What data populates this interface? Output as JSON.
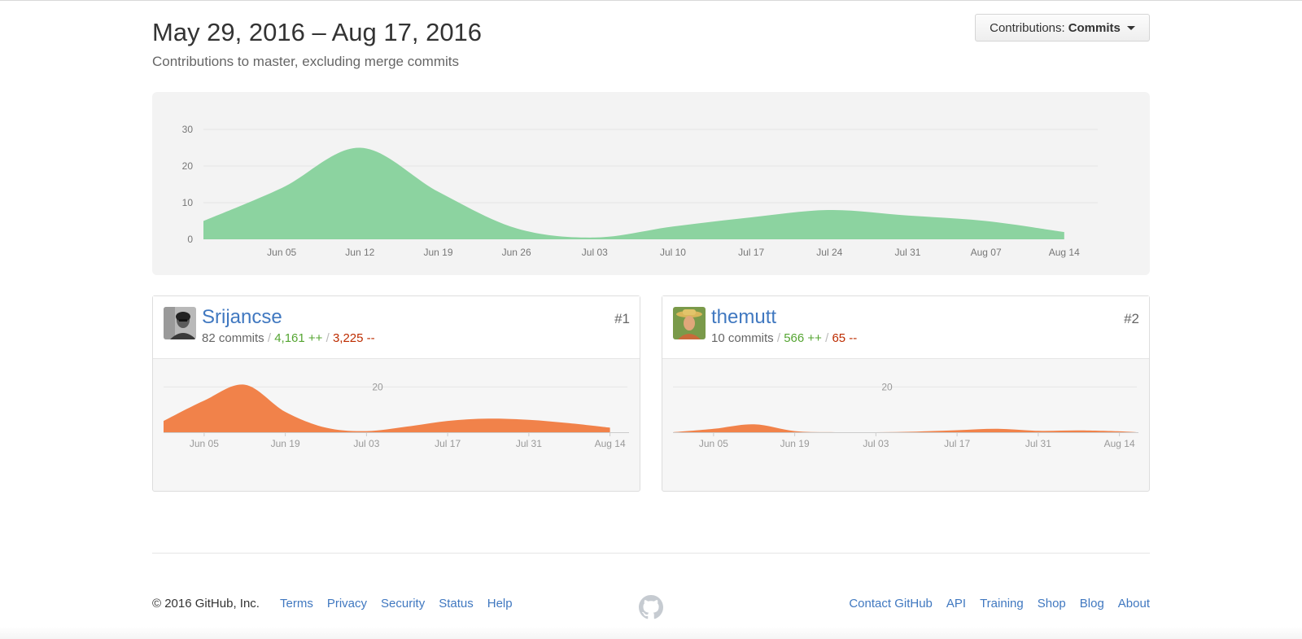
{
  "header": {
    "date_range": "May 29, 2016 – Aug 17, 2016",
    "subtitle": "Contributions to master, excluding merge commits",
    "contrib_label": "Contributions:",
    "contrib_value": "Commits"
  },
  "colors": {
    "main_area": "#8cd3a0",
    "user_area": "#f1824a",
    "link": "#4078c0",
    "additions": "#55a532",
    "deletions": "#bd2c00"
  },
  "chart_data": [
    {
      "type": "area",
      "yticks": [
        0,
        10,
        20,
        30
      ],
      "ylim": [
        0,
        32
      ],
      "xlim": [
        "2016-05-29",
        "2016-08-17"
      ],
      "x_tick_labels": [
        "Jun 05",
        "Jun 12",
        "Jun 19",
        "Jun 26",
        "Jul 03",
        "Jul 10",
        "Jul 17",
        "Jul 24",
        "Jul 31",
        "Aug 07",
        "Aug 14"
      ],
      "x_tick_dates": [
        "2016-06-05",
        "2016-06-12",
        "2016-06-19",
        "2016-06-26",
        "2016-07-03",
        "2016-07-10",
        "2016-07-17",
        "2016-07-24",
        "2016-07-31",
        "2016-08-07",
        "2016-08-14"
      ],
      "series": [
        {
          "x": [
            "2016-05-29",
            "2016-06-05",
            "2016-06-12",
            "2016-06-19",
            "2016-06-26",
            "2016-07-03",
            "2016-07-10",
            "2016-07-17",
            "2016-07-24",
            "2016-07-31",
            "2016-08-07",
            "2016-08-14"
          ],
          "values": [
            5,
            14,
            25,
            13,
            3,
            0.5,
            3.5,
            6,
            8,
            6.5,
            5,
            2
          ]
        }
      ]
    },
    {
      "type": "area",
      "yticks": [
        20
      ],
      "ylim": [
        0,
        32
      ],
      "xlim": [
        "2016-05-29",
        "2016-08-17"
      ],
      "x_tick_labels": [
        "Jun 05",
        "Jun 19",
        "Jul 03",
        "Jul 17",
        "Jul 31",
        "Aug 14"
      ],
      "x_tick_dates": [
        "2016-06-05",
        "2016-06-19",
        "2016-07-03",
        "2016-07-17",
        "2016-07-31",
        "2016-08-14"
      ],
      "series": [
        {
          "x": [
            "2016-05-29",
            "2016-06-05",
            "2016-06-12",
            "2016-06-19",
            "2016-06-26",
            "2016-07-03",
            "2016-07-10",
            "2016-07-17",
            "2016-07-24",
            "2016-07-31",
            "2016-08-07",
            "2016-08-14"
          ],
          "values": [
            5,
            14,
            21,
            9,
            2,
            0.5,
            2.5,
            5,
            6,
            5.5,
            4,
            2
          ]
        }
      ]
    },
    {
      "type": "area",
      "yticks": [
        20
      ],
      "ylim": [
        0,
        32
      ],
      "xlim": [
        "2016-05-29",
        "2016-08-17"
      ],
      "x_tick_labels": [
        "Jun 05",
        "Jun 19",
        "Jul 03",
        "Jul 17",
        "Jul 31",
        "Aug 14"
      ],
      "x_tick_dates": [
        "2016-06-05",
        "2016-06-19",
        "2016-07-03",
        "2016-07-17",
        "2016-07-31",
        "2016-08-14"
      ],
      "series": [
        {
          "x": [
            "2016-05-29",
            "2016-06-05",
            "2016-06-12",
            "2016-06-19",
            "2016-06-26",
            "2016-07-03",
            "2016-07-10",
            "2016-07-17",
            "2016-07-24",
            "2016-07-31",
            "2016-08-07",
            "2016-08-14",
            "2016-08-17"
          ],
          "values": [
            0,
            1.5,
            3.5,
            0.5,
            0,
            0,
            0.3,
            0.9,
            1.5,
            0.6,
            0.8,
            0.4,
            0
          ]
        }
      ]
    }
  ],
  "contributors": [
    {
      "name": "Srijancse",
      "commits": "82 commits",
      "additions": "4,161 ++",
      "deletions": "3,225 --",
      "rank": "#1",
      "avatar_icon": "person-avatar-grayscale"
    },
    {
      "name": "themutt",
      "commits": "10 commits",
      "additions": "566 ++",
      "deletions": "65 --",
      "rank": "#2",
      "avatar_icon": "person-avatar-hat"
    }
  ],
  "footer": {
    "copyright": "© 2016 GitHub, Inc.",
    "left_links": [
      "Terms",
      "Privacy",
      "Security",
      "Status",
      "Help"
    ],
    "right_links": [
      "Contact GitHub",
      "API",
      "Training",
      "Shop",
      "Blog",
      "About"
    ],
    "logo_icon": "github-octocat-icon"
  }
}
